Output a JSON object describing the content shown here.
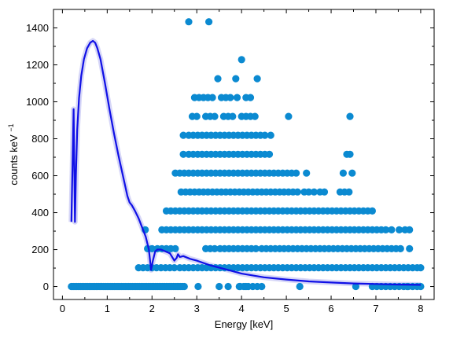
{
  "chart_data": {
    "type": "scatter",
    "title": "",
    "xlabel": "Energy [keV]",
    "ylabel": "counts keV",
    "ylabel_superscript": "−1",
    "xlim": [
      -0.2,
      8.3
    ],
    "ylim": [
      -70,
      1500
    ],
    "xticks": [
      0,
      1,
      2,
      3,
      4,
      5,
      6,
      7,
      8
    ],
    "yticks": [
      0,
      200,
      400,
      600,
      800,
      1000,
      1200,
      1400
    ],
    "grid": false,
    "legend": "none",
    "colors": {
      "points": "#0b8ad1",
      "model": "#1010e6",
      "band": "#8a8ae8"
    },
    "points_rows": [
      {
        "y": 1433,
        "x": [
          2.82,
          3.27
        ]
      },
      {
        "y": 1228,
        "x": [
          4.0
        ]
      },
      {
        "y": 1125,
        "x": [
          3.47,
          3.87,
          4.35
        ]
      },
      {
        "y": 1023,
        "x": [
          2.95,
          3.05,
          3.15,
          3.25,
          3.35,
          3.55,
          3.65,
          3.75,
          3.9,
          4.1,
          4.2
        ]
      },
      {
        "y": 921,
        "x": [
          2.9,
          3.0,
          3.2,
          3.3,
          3.4,
          3.6,
          3.7,
          3.8,
          4.0,
          4.1,
          4.2,
          4.3,
          5.05,
          6.42
        ]
      },
      {
        "y": 819,
        "x": [
          2.7,
          2.82,
          2.92,
          3.02,
          3.12,
          3.22,
          3.32,
          3.42,
          3.52,
          3.62,
          3.72,
          3.82,
          3.92,
          4.02,
          4.12,
          4.22,
          4.32,
          4.42,
          4.52,
          4.65
        ]
      },
      {
        "y": 716,
        "x": [
          2.7,
          2.82,
          2.92,
          3.02,
          3.12,
          3.22,
          3.32,
          3.42,
          3.52,
          3.62,
          3.72,
          3.82,
          3.92,
          4.02,
          4.12,
          4.22,
          4.32,
          4.42,
          4.52,
          4.62,
          6.35,
          6.42
        ]
      },
      {
        "y": 614,
        "x": [
          2.52,
          2.62,
          2.72,
          2.82,
          2.92,
          3.02,
          3.12,
          3.22,
          3.32,
          3.42,
          3.52,
          3.62,
          3.72,
          3.82,
          3.92,
          4.02,
          4.12,
          4.22,
          4.32,
          4.42,
          4.52,
          4.62,
          4.72,
          4.82,
          4.92,
          5.02,
          5.12,
          5.22,
          5.45,
          6.27,
          6.47
        ]
      },
      {
        "y": 512,
        "x": [
          2.65,
          2.75,
          2.85,
          2.95,
          3.05,
          3.15,
          3.25,
          3.35,
          3.45,
          3.55,
          3.65,
          3.75,
          3.85,
          3.95,
          4.05,
          4.15,
          4.25,
          4.35,
          4.45,
          4.55,
          4.65,
          4.75,
          4.85,
          4.95,
          5.05,
          5.15,
          5.25,
          5.4,
          5.5,
          5.62,
          5.75,
          5.85,
          6.2,
          6.3,
          6.4
        ]
      },
      {
        "y": 409,
        "x": [
          2.32,
          2.42,
          2.52,
          2.62,
          2.72,
          2.82,
          2.92,
          3.02,
          3.12,
          3.22,
          3.32,
          3.42,
          3.52,
          3.62,
          3.72,
          3.82,
          3.92,
          4.02,
          4.12,
          4.22,
          4.32,
          4.42,
          4.52,
          4.62,
          4.72,
          4.82,
          4.92,
          5.02,
          5.12,
          5.22,
          5.32,
          5.42,
          5.52,
          5.62,
          5.72,
          5.82,
          5.92,
          6.02,
          6.12,
          6.22,
          6.32,
          6.42,
          6.52,
          6.62,
          6.72,
          6.82,
          6.92
        ]
      },
      {
        "y": 307,
        "x": [
          1.85,
          2.22,
          2.32,
          2.42,
          2.52,
          2.62,
          2.72,
          2.82,
          2.92,
          3.02,
          3.12,
          3.22,
          3.32,
          3.42,
          3.52,
          3.62,
          3.72,
          3.82,
          3.92,
          4.02,
          4.12,
          4.22,
          4.32,
          4.42,
          4.52,
          4.62,
          4.72,
          4.82,
          4.92,
          5.02,
          5.12,
          5.22,
          5.32,
          5.42,
          5.52,
          5.62,
          5.72,
          5.82,
          5.92,
          6.02,
          6.12,
          6.22,
          6.32,
          6.42,
          6.52,
          6.62,
          6.72,
          6.82,
          6.92,
          7.02,
          7.12,
          7.22,
          7.35,
          7.52,
          7.65,
          7.75
        ]
      },
      {
        "y": 205,
        "x": [
          1.9,
          2.0,
          2.12,
          2.22,
          2.32,
          2.42,
          2.52,
          3.2,
          3.3,
          3.4,
          3.52,
          3.62,
          3.72,
          3.82,
          3.92,
          4.02,
          4.12,
          4.22,
          4.32,
          4.45,
          4.55,
          4.65,
          4.75,
          4.85,
          4.95,
          5.05,
          5.15,
          5.25,
          5.35,
          5.45,
          5.55,
          5.65,
          5.75,
          5.85,
          5.95,
          6.05,
          6.15,
          6.25,
          6.35,
          6.45,
          6.55,
          6.65,
          6.75,
          6.85,
          6.95,
          7.05,
          7.15,
          7.25,
          7.35,
          7.45,
          7.55,
          7.75
        ]
      },
      {
        "y": 102,
        "x": [
          1.7,
          1.8,
          1.9,
          2.0,
          2.1,
          2.2,
          2.3,
          2.4,
          2.5,
          2.62,
          2.72,
          2.82,
          2.92,
          3.02,
          3.12,
          3.22,
          3.32,
          3.42,
          3.52,
          3.62,
          3.72,
          3.82,
          3.92,
          4.02,
          4.12,
          4.22,
          4.32,
          4.42,
          4.52,
          4.62,
          4.72,
          4.82,
          4.92,
          5.02,
          5.12,
          5.22,
          5.32,
          5.42,
          5.52,
          5.62,
          5.72,
          5.82,
          5.92,
          6.02,
          6.12,
          6.22,
          6.32,
          6.42,
          6.52,
          6.62,
          6.72,
          6.82,
          6.92,
          7.02,
          7.12,
          7.22,
          7.32,
          7.42,
          7.52,
          7.62,
          7.72,
          7.82,
          7.92,
          8.0
        ]
      },
      {
        "y": 0,
        "x": [
          0.2,
          0.24,
          0.28,
          0.32,
          0.36,
          0.4,
          0.44,
          0.48,
          0.52,
          0.56,
          0.6,
          0.64,
          0.68,
          0.72,
          0.76,
          0.8,
          0.84,
          0.88,
          0.92,
          0.96,
          1.0,
          1.04,
          1.08,
          1.12,
          1.16,
          1.2,
          1.24,
          1.28,
          1.32,
          1.36,
          1.4,
          1.44,
          1.48,
          1.52,
          1.56,
          1.6,
          1.64,
          1.68,
          1.72,
          1.76,
          1.8,
          1.84,
          1.88,
          1.92,
          1.96,
          2.0,
          2.04,
          2.08,
          2.12,
          2.16,
          2.2,
          2.24,
          2.28,
          2.32,
          2.36,
          2.4,
          2.44,
          2.48,
          2.52,
          2.56,
          2.6,
          2.64,
          2.68,
          2.72,
          3.7,
          3.95,
          4.05,
          4.15,
          4.25,
          4.35,
          4.45,
          6.92,
          7.02,
          7.12,
          7.22,
          7.32,
          7.42,
          7.52,
          7.62,
          7.72,
          7.82,
          7.92,
          8.0
        ]
      },
      {
        "y": 0,
        "x": [
          3.03,
          3.5,
          3.97,
          4.1,
          5.3,
          6.55,
          7.7
        ]
      }
    ],
    "model_curve": {
      "x": [
        0.2,
        0.25,
        0.28,
        0.3,
        0.33,
        0.37,
        0.42,
        0.48,
        0.55,
        0.62,
        0.68,
        0.73,
        0.78,
        0.85,
        0.95,
        1.05,
        1.15,
        1.25,
        1.35,
        1.45,
        1.5,
        1.55,
        1.62,
        1.7,
        1.78,
        1.86,
        1.93,
        1.98,
        2.02,
        2.07,
        2.12,
        2.2,
        2.3,
        2.4,
        2.5,
        2.55,
        2.58,
        2.62,
        2.7,
        2.85,
        3.0,
        3.3,
        3.7,
        4.0,
        4.5,
        5.0,
        5.5,
        6.0,
        6.5,
        7.0,
        7.5,
        8.0
      ],
      "y": [
        350,
        960,
        350,
        600,
        850,
        1020,
        1140,
        1230,
        1290,
        1320,
        1330,
        1320,
        1290,
        1230,
        1100,
        960,
        830,
        710,
        600,
        490,
        455,
        440,
        410,
        370,
        320,
        270,
        200,
        90,
        140,
        190,
        200,
        200,
        190,
        180,
        140,
        155,
        175,
        160,
        165,
        150,
        140,
        115,
        90,
        70,
        50,
        38,
        28,
        22,
        17,
        14,
        11,
        9
      ]
    }
  }
}
